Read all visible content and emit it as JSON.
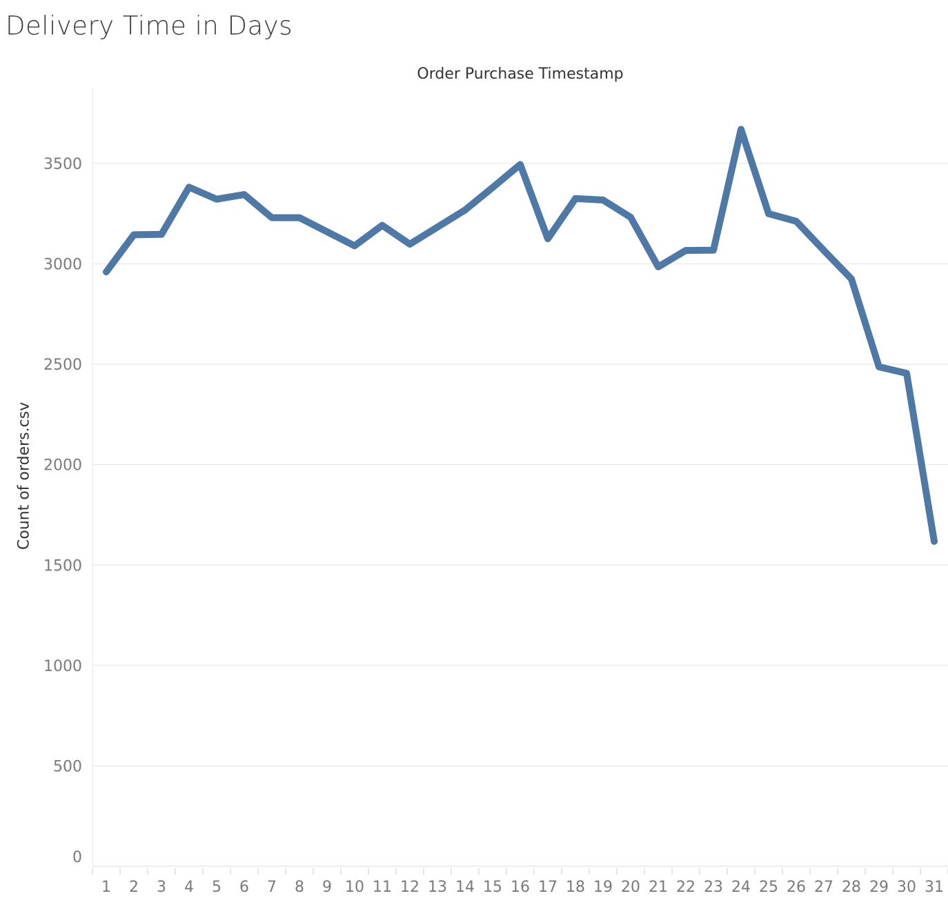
{
  "chart_data": {
    "type": "line",
    "title": "Delivery Time in Days",
    "xlabel": "Order Purchase Timestamp",
    "ylabel": "Count of orders.csv",
    "x": [
      "1",
      "2",
      "3",
      "4",
      "5",
      "6",
      "7",
      "8",
      "9",
      "10",
      "11",
      "12",
      "13",
      "14",
      "15",
      "16",
      "17",
      "18",
      "19",
      "20",
      "21",
      "22",
      "23",
      "24",
      "25",
      "26",
      "27",
      "28",
      "29",
      "30",
      "31"
    ],
    "series": [
      {
        "values": [
          2960,
          3145,
          3147,
          3382,
          3322,
          3345,
          3230,
          3230,
          3160,
          3090,
          3192,
          3098,
          3183,
          3268,
          3380,
          3495,
          3125,
          3325,
          3318,
          3232,
          2985,
          3067,
          3068,
          3670,
          3250,
          3212,
          3067,
          2925,
          2487,
          2455,
          1618
        ]
      }
    ],
    "ylim": [
      0,
      3850
    ],
    "yticks": [
      0,
      500,
      1000,
      1500,
      2000,
      2500,
      3000,
      3500
    ],
    "grid": true,
    "line_color": "#4e79a7",
    "grid_color": "#ebebeb"
  }
}
